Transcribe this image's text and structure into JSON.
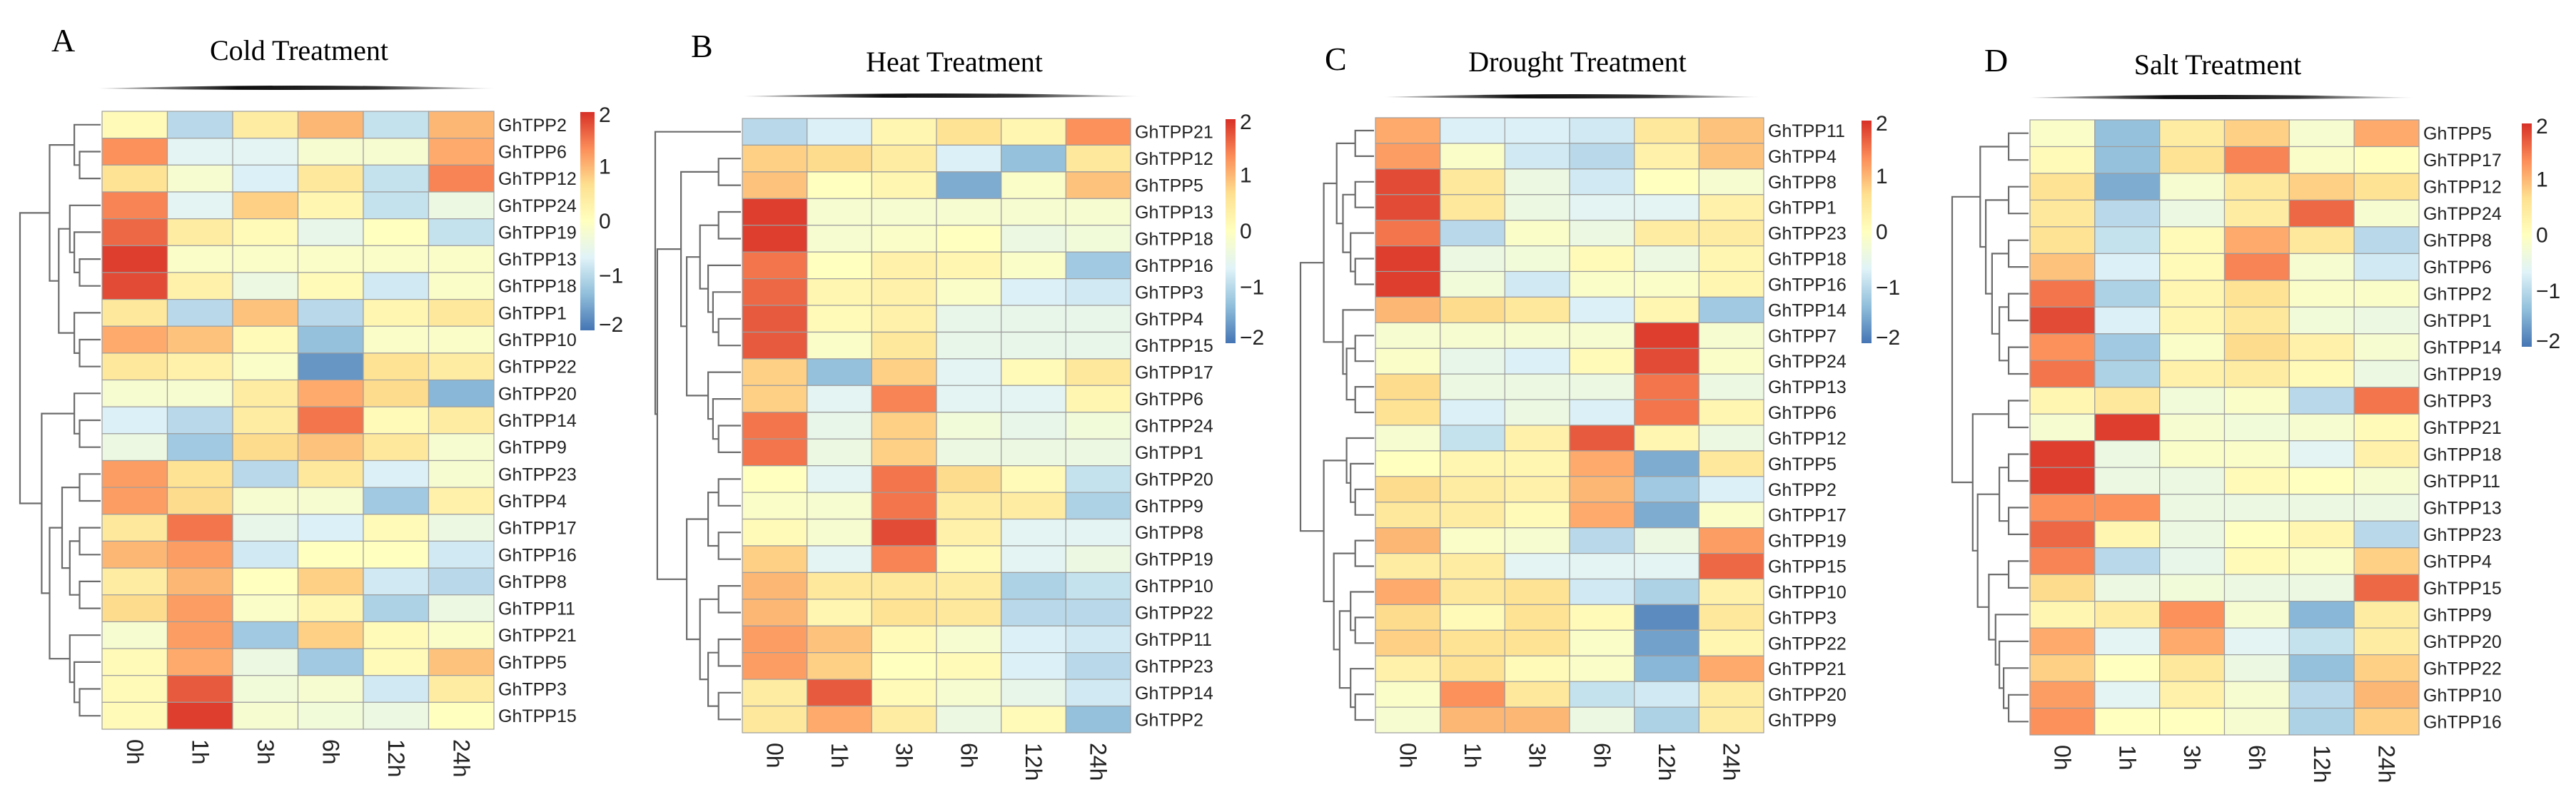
{
  "chart_data": [
    {
      "type": "heatmap",
      "panel": "A",
      "title": "Cold Treatment",
      "columns": [
        "0h",
        "1h",
        "3h",
        "6h",
        "12h",
        "24h"
      ],
      "rows": [
        "GhTPP2",
        "GhTPP6",
        "GhTPP12",
        "GhTPP24",
        "GhTPP19",
        "GhTPP13",
        "GhTPP18",
        "GhTPP1",
        "GhTPP10",
        "GhTPP22",
        "GhTPP20",
        "GhTPP14",
        "GhTPP9",
        "GhTPP23",
        "GhTPP4",
        "GhTPP17",
        "GhTPP16",
        "GhTPP8",
        "GhTPP11",
        "GhTPP21",
        "GhTPP5",
        "GhTPP3",
        "GhTPP15"
      ],
      "values": [
        [
          0.1,
          -1.0,
          0.4,
          1.0,
          -0.9,
          1.0
        ],
        [
          1.3,
          -0.6,
          -0.6,
          -0.2,
          -0.2,
          1.1
        ],
        [
          0.6,
          -0.2,
          -0.7,
          0.5,
          -0.9,
          1.4
        ],
        [
          1.4,
          -0.6,
          0.8,
          0.2,
          -0.9,
          -0.4
        ],
        [
          1.6,
          0.4,
          0.1,
          -0.5,
          0.0,
          -0.9
        ],
        [
          1.9,
          -0.1,
          -0.1,
          -0.1,
          -0.1,
          -0.1
        ],
        [
          1.8,
          0.3,
          -0.4,
          0.1,
          -0.8,
          -0.1
        ],
        [
          0.5,
          -1.0,
          0.9,
          -1.0,
          0.2,
          0.5
        ],
        [
          1.1,
          0.9,
          0.1,
          -1.3,
          -0.1,
          -0.1
        ],
        [
          0.5,
          0.3,
          -0.1,
          -1.7,
          0.6,
          0.4
        ],
        [
          -0.2,
          -0.2,
          0.4,
          1.1,
          0.7,
          -1.4
        ],
        [
          -0.7,
          -1.0,
          0.4,
          1.5,
          0.1,
          0.4
        ],
        [
          -0.4,
          -1.2,
          0.7,
          0.9,
          0.5,
          -0.2
        ],
        [
          1.2,
          0.6,
          -1.0,
          0.5,
          -0.7,
          -0.2
        ],
        [
          1.2,
          0.7,
          -0.2,
          -0.2,
          -1.2,
          0.3
        ],
        [
          0.5,
          1.5,
          -0.5,
          -0.7,
          0.1,
          -0.4
        ],
        [
          1.0,
          1.2,
          -0.8,
          0.0,
          0.0,
          -0.8
        ],
        [
          0.4,
          1.0,
          0.0,
          0.8,
          -0.8,
          -1.0
        ],
        [
          0.7,
          1.2,
          -0.1,
          0.2,
          -1.1,
          -0.4
        ],
        [
          -0.2,
          1.2,
          -1.2,
          0.8,
          0.1,
          -0.1
        ],
        [
          0.1,
          1.1,
          -0.4,
          -1.2,
          0.1,
          0.9
        ],
        [
          0.1,
          1.7,
          -0.3,
          -0.2,
          -0.8,
          0.4
        ],
        [
          0.1,
          1.9,
          -0.2,
          -0.3,
          -0.4,
          0.0
        ]
      ],
      "row_dendrogram": [
        [
          [
            0,
            [
              1,
              2
            ]
          ],
          [
            [
              3,
              [
                4,
                [
                  5,
                  6
                ]
              ]
            ],
            [
              7,
              [
                8,
                9
              ]
            ]
          ]
        ],
        [
          [
            10,
            [
              11,
              12
            ]
          ],
          [
            [
              [
                13,
                14
              ],
              [
                [
                  15,
                  16
                ],
                [
                  17,
                  18
                ]
              ]
            ],
            [
              19,
              [
                20,
                [
                  21,
                  22
                ]
              ]
            ]
          ]
        ]
      ],
      "legend": {
        "ticks": [
          2,
          1,
          0,
          -1,
          -2
        ],
        "tick_labels": [
          "2",
          "1",
          "0",
          "−1",
          "−2"
        ],
        "range": [
          -2,
          2
        ]
      }
    },
    {
      "type": "heatmap",
      "panel": "B",
      "title": "Heat Treatment",
      "columns": [
        "0h",
        "1h",
        "3h",
        "6h",
        "12h",
        "24h"
      ],
      "rows": [
        "GhTPP21",
        "GhTPP12",
        "GhTPP5",
        "GhTPP13",
        "GhTPP18",
        "GhTPP16",
        "GhTPP3",
        "GhTPP4",
        "GhTPP15",
        "GhTPP17",
        "GhTPP6",
        "GhTPP24",
        "GhTPP1",
        "GhTPP20",
        "GhTPP9",
        "GhTPP8",
        "GhTPP19",
        "GhTPP10",
        "GhTPP22",
        "GhTPP11",
        "GhTPP23",
        "GhTPP14",
        "GhTPP2"
      ],
      "values": [
        [
          -1.0,
          -0.7,
          0.2,
          0.6,
          0.2,
          1.3
        ],
        [
          0.8,
          0.7,
          0.4,
          -0.7,
          -1.3,
          0.5
        ],
        [
          0.9,
          0.0,
          0.2,
          -1.5,
          -0.1,
          0.9
        ],
        [
          1.9,
          -0.2,
          -0.2,
          -0.2,
          -0.2,
          -0.2
        ],
        [
          1.9,
          -0.2,
          -0.1,
          0.0,
          -0.4,
          -0.3
        ],
        [
          1.5,
          0.0,
          0.3,
          0.2,
          -0.1,
          -1.2
        ],
        [
          1.6,
          0.2,
          0.3,
          -0.1,
          -0.7,
          -0.8
        ],
        [
          1.7,
          0.1,
          0.3,
          -0.5,
          -0.5,
          -0.5
        ],
        [
          1.7,
          -0.1,
          0.5,
          -0.5,
          -0.5,
          -0.5
        ],
        [
          0.8,
          -1.3,
          0.8,
          -0.6,
          0.1,
          0.5
        ],
        [
          0.8,
          -0.6,
          1.4,
          -0.6,
          -0.6,
          0.2
        ],
        [
          1.5,
          -0.5,
          0.8,
          -0.3,
          -0.5,
          -0.3
        ],
        [
          1.5,
          -0.4,
          0.8,
          -0.4,
          -0.4,
          -0.4
        ],
        [
          0.0,
          -0.6,
          1.5,
          0.7,
          0.1,
          -0.9
        ],
        [
          -0.1,
          -0.2,
          1.5,
          0.4,
          0.4,
          -1.1
        ],
        [
          0.1,
          -0.2,
          1.8,
          0.3,
          -0.6,
          -0.6
        ],
        [
          0.8,
          -0.6,
          1.4,
          0.1,
          -0.6,
          -0.4
        ],
        [
          1.0,
          0.5,
          0.5,
          0.4,
          -1.1,
          -0.9
        ],
        [
          1.0,
          0.2,
          0.6,
          0.5,
          -1.0,
          -1.0
        ],
        [
          1.2,
          0.9,
          0.1,
          -0.2,
          -0.7,
          -0.8
        ],
        [
          1.2,
          0.8,
          0.0,
          0.1,
          -0.7,
          -1.0
        ],
        [
          0.4,
          1.7,
          0.1,
          -0.2,
          -0.5,
          -0.8
        ],
        [
          0.5,
          1.1,
          0.4,
          -0.4,
          0.1,
          -1.3
        ]
      ],
      "row_dendrogram": [
        0,
        [
          [
            [
              1,
              2
            ],
            [
              [
                [
                  3,
                  4
                ],
                [
                  5,
                  [
                    6,
                    [
                      7,
                      8
                    ]
                  ]
                ]
              ],
              [
                9,
                [
                  10,
                  [
                    11,
                    12
                  ]
                ]
              ]
            ]
          ],
          [
            [
              [
                13,
                14
              ],
              [
                15,
                16
              ]
            ],
            [
              [
                17,
                18
              ],
              [
                [
                  19,
                  20
                ],
                [
                  21,
                  22
                ]
              ]
            ]
          ]
        ]
      ],
      "legend": {
        "ticks": [
          2,
          1,
          0,
          -1,
          -2
        ],
        "tick_labels": [
          "2",
          "1",
          "0",
          "−1",
          "−2"
        ],
        "range": [
          -2,
          2
        ]
      }
    },
    {
      "type": "heatmap",
      "panel": "C",
      "title": "Drought Treatment",
      "columns": [
        "0h",
        "1h",
        "3h",
        "6h",
        "12h",
        "24h"
      ],
      "rows": [
        "GhTPP11",
        "GhTPP4",
        "GhTPP8",
        "GhTPP1",
        "GhTPP23",
        "GhTPP18",
        "GhTPP16",
        "GhTPP14",
        "GhTPP7",
        "GhTPP24",
        "GhTPP13",
        "GhTPP6",
        "GhTPP12",
        "GhTPP5",
        "GhTPP2",
        "GhTPP17",
        "GhTPP19",
        "GhTPP15",
        "GhTPP10",
        "GhTPP3",
        "GhTPP22",
        "GhTPP21",
        "GhTPP20",
        "GhTPP9"
      ],
      "values": [
        [
          1.1,
          -0.7,
          -0.7,
          -0.8,
          0.5,
          0.9
        ],
        [
          1.2,
          -0.1,
          -0.8,
          -1.0,
          0.3,
          0.9
        ],
        [
          1.8,
          0.5,
          -0.4,
          -0.8,
          0.0,
          -0.2
        ],
        [
          1.8,
          0.5,
          -0.4,
          -0.6,
          -0.6,
          0.3
        ],
        [
          1.5,
          -1.0,
          -0.1,
          -0.4,
          0.4,
          0.4
        ],
        [
          1.9,
          -0.4,
          -0.3,
          0.1,
          -0.4,
          0.2
        ],
        [
          1.9,
          -0.3,
          -0.8,
          -0.1,
          -0.1,
          0.2
        ],
        [
          1.0,
          0.7,
          0.5,
          -0.7,
          0.2,
          -1.2
        ],
        [
          -0.2,
          -0.2,
          -0.2,
          -0.2,
          1.9,
          -0.2
        ],
        [
          -0.1,
          -0.5,
          -0.7,
          0.1,
          1.8,
          -0.1
        ],
        [
          0.7,
          -0.4,
          -0.4,
          -0.4,
          1.5,
          -0.4
        ],
        [
          0.6,
          -0.7,
          -0.4,
          -0.7,
          1.5,
          0.2
        ],
        [
          -0.2,
          -0.9,
          0.3,
          1.7,
          0.2,
          -0.4
        ],
        [
          0.0,
          0.2,
          0.2,
          1.1,
          -1.5,
          0.5
        ],
        [
          0.7,
          0.4,
          0.3,
          1.0,
          -1.2,
          -0.7
        ],
        [
          0.5,
          0.4,
          0.1,
          1.1,
          -1.5,
          -0.1
        ],
        [
          1.0,
          -0.1,
          -0.2,
          -1.0,
          -0.4,
          1.2
        ],
        [
          0.4,
          0.4,
          -0.6,
          -0.6,
          -0.6,
          1.6
        ],
        [
          1.1,
          0.5,
          0.6,
          -0.8,
          -1.1,
          0.3
        ],
        [
          0.7,
          0.1,
          0.6,
          0.1,
          -1.8,
          0.5
        ],
        [
          0.8,
          0.6,
          0.6,
          -0.1,
          -1.6,
          0.2
        ],
        [
          0.3,
          0.6,
          0.1,
          -0.1,
          -1.4,
          1.1
        ],
        [
          -0.1,
          1.3,
          0.5,
          -0.9,
          -0.8,
          0.4
        ],
        [
          -0.2,
          1.0,
          1.0,
          -0.4,
          -1.1,
          0.4
        ]
      ],
      "row_dendrogram": [
        [
          [
            [
              0,
              1
            ],
            [
              [
                2,
                3
              ],
              [
                4,
                [
                  5,
                  6
                ]
              ]
            ]
          ],
          [
            7,
            [
              [
                8,
                9
              ],
              [
                10,
                11
              ]
            ]
          ]
        ],
        [
          [
            12,
            [
              13,
              [
                14,
                15
              ]
            ]
          ],
          [
            [
              16,
              17
            ],
            [
              [
                18,
                [
                  19,
                  20
                ]
              ],
              [
                21,
                [
                  22,
                  23
                ]
              ]
            ]
          ]
        ]
      ],
      "legend": {
        "ticks": [
          2,
          1,
          0,
          -1,
          -2
        ],
        "tick_labels": [
          "2",
          "1",
          "0",
          "−1",
          "−2"
        ],
        "range": [
          -2,
          2
        ]
      }
    },
    {
      "type": "heatmap",
      "panel": "D",
      "title": "Salt Treatment",
      "columns": [
        "0h",
        "1h",
        "3h",
        "6h",
        "12h",
        "24h"
      ],
      "rows": [
        "GhTPP5",
        "GhTPP17",
        "GhTPP12",
        "GhTPP24",
        "GhTPP8",
        "GhTPP6",
        "GhTPP2",
        "GhTPP1",
        "GhTPP14",
        "GhTPP19",
        "GhTPP3",
        "GhTPP21",
        "GhTPP18",
        "GhTPP11",
        "GhTPP13",
        "GhTPP23",
        "GhTPP4",
        "GhTPP15",
        "GhTPP9",
        "GhTPP20",
        "GhTPP22",
        "GhTPP10",
        "GhTPP16"
      ],
      "values": [
        [
          -0.1,
          -1.3,
          0.4,
          0.8,
          -0.2,
          1.1
        ],
        [
          0.1,
          -1.3,
          0.6,
          1.4,
          -0.1,
          0.0
        ],
        [
          0.6,
          -1.5,
          -0.2,
          0.5,
          0.8,
          0.6
        ],
        [
          0.5,
          -1.0,
          -0.4,
          0.4,
          1.6,
          -0.2
        ],
        [
          0.6,
          -0.9,
          0.1,
          1.1,
          0.5,
          -1.0
        ],
        [
          0.9,
          -0.7,
          0.1,
          1.4,
          -0.2,
          -0.8
        ],
        [
          1.5,
          -1.1,
          0.2,
          0.6,
          -0.1,
          -0.1
        ],
        [
          1.8,
          -0.7,
          0.2,
          0.5,
          -0.3,
          -0.4
        ],
        [
          1.3,
          -1.2,
          -0.1,
          0.7,
          0.3,
          -0.2
        ],
        [
          1.5,
          -1.1,
          0.3,
          0.4,
          0.1,
          -0.4
        ],
        [
          0.2,
          0.5,
          -0.3,
          -0.1,
          -1.0,
          1.5
        ],
        [
          -0.2,
          1.9,
          -0.2,
          -0.3,
          -0.2,
          0.1
        ],
        [
          1.9,
          -0.4,
          -0.1,
          -0.1,
          -0.6,
          0.3
        ],
        [
          1.9,
          -0.4,
          -0.4,
          0.1,
          0.0,
          -0.2
        ],
        [
          1.3,
          1.3,
          -0.4,
          -0.4,
          -0.4,
          -0.4
        ],
        [
          1.6,
          0.2,
          -0.4,
          0.0,
          0.2,
          -1.0
        ],
        [
          1.4,
          -1.0,
          -0.5,
          0.1,
          -0.1,
          0.8
        ],
        [
          0.7,
          -0.4,
          -0.3,
          -0.4,
          -0.4,
          1.6
        ],
        [
          0.2,
          0.4,
          1.3,
          -0.2,
          -1.4,
          0.4
        ],
        [
          1.1,
          -0.6,
          1.1,
          -0.6,
          -0.9,
          0.4
        ],
        [
          0.8,
          0.0,
          0.5,
          -0.4,
          -1.3,
          0.8
        ],
        [
          1.2,
          -0.6,
          0.3,
          -0.2,
          -1.0,
          1.0
        ],
        [
          1.3,
          0.0,
          0.0,
          -0.2,
          -1.1,
          0.8
        ]
      ],
      "row_dendrogram": [
        [
          [
            0,
            1
          ],
          [
            [
              2,
              3
            ],
            [
              [
                4,
                5
              ],
              [
                [
                  6,
                  7
                ],
                [
                  8,
                  9
                ]
              ]
            ]
          ]
        ],
        [
          [
            10,
            11
          ],
          [
            [
              [
                12,
                13
              ],
              [
                14,
                15
              ]
            ],
            [
              [
                16,
                17
              ],
              [
                18,
                [
                  19,
                  [
                    20,
                    [
                      21,
                      22
                    ]
                  ]
                ]
              ]
            ]
          ]
        ]
      ],
      "legend": {
        "ticks": [
          2,
          1,
          0,
          -1,
          -2
        ],
        "tick_labels": [
          "2",
          "1",
          "0",
          "−1",
          "−2"
        ],
        "range": [
          -2,
          2
        ]
      }
    }
  ],
  "color_scale": {
    "name": "RdYlBu (reversed)",
    "stops": [
      {
        "value": -2,
        "color": "#4575B4"
      },
      {
        "value": -1.33,
        "color": "#91BFDB"
      },
      {
        "value": -0.67,
        "color": "#E0F3F8"
      },
      {
        "value": 0,
        "color": "#FFFFBF"
      },
      {
        "value": 0.67,
        "color": "#FEE090"
      },
      {
        "value": 1.33,
        "color": "#FC8D59"
      },
      {
        "value": 2,
        "color": "#D73027"
      }
    ]
  }
}
